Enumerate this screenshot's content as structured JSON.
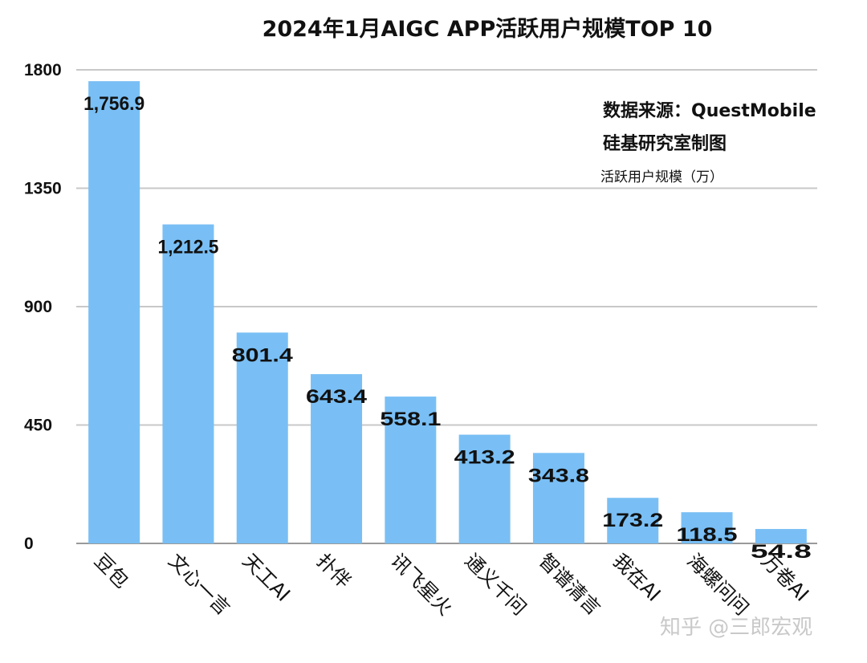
{
  "chart_data": {
    "type": "bar",
    "title": "2024年1月AIGC APP活跃用户规模TOP 10",
    "ylabel": "活跃用户规模（万）",
    "xlabel": "",
    "categories": [
      "豆包",
      "文心一言",
      "天工AI",
      "扑伴",
      "讯飞星火",
      "通义千问",
      "智谱清言",
      "我在AI",
      "海螺问问",
      "万卷AI"
    ],
    "values": [
      1756.9,
      1212.5,
      801.4,
      643.4,
      558.1,
      413.2,
      343.8,
      173.2,
      118.5,
      54.8
    ],
    "value_labels": [
      "1,756.9",
      "1,212.5",
      "801.4",
      "643.4",
      "558.1",
      "413.2",
      "343.8",
      "173.2",
      "118.5",
      "54.8"
    ],
    "ylim": [
      0,
      1800
    ],
    "yticks": [
      0,
      450,
      900,
      1350,
      1800
    ],
    "ytick_labels": [
      "0",
      "450",
      "900",
      "1350",
      "1800"
    ],
    "grid": true,
    "bar_color": "#79bff5",
    "grid_color": "#c8c8c8",
    "legend": "none"
  },
  "annotations": {
    "source": "数据来源：QuestMobile",
    "maker": "硅基研究室制图",
    "watermark": "知乎 @三郎宏观"
  }
}
